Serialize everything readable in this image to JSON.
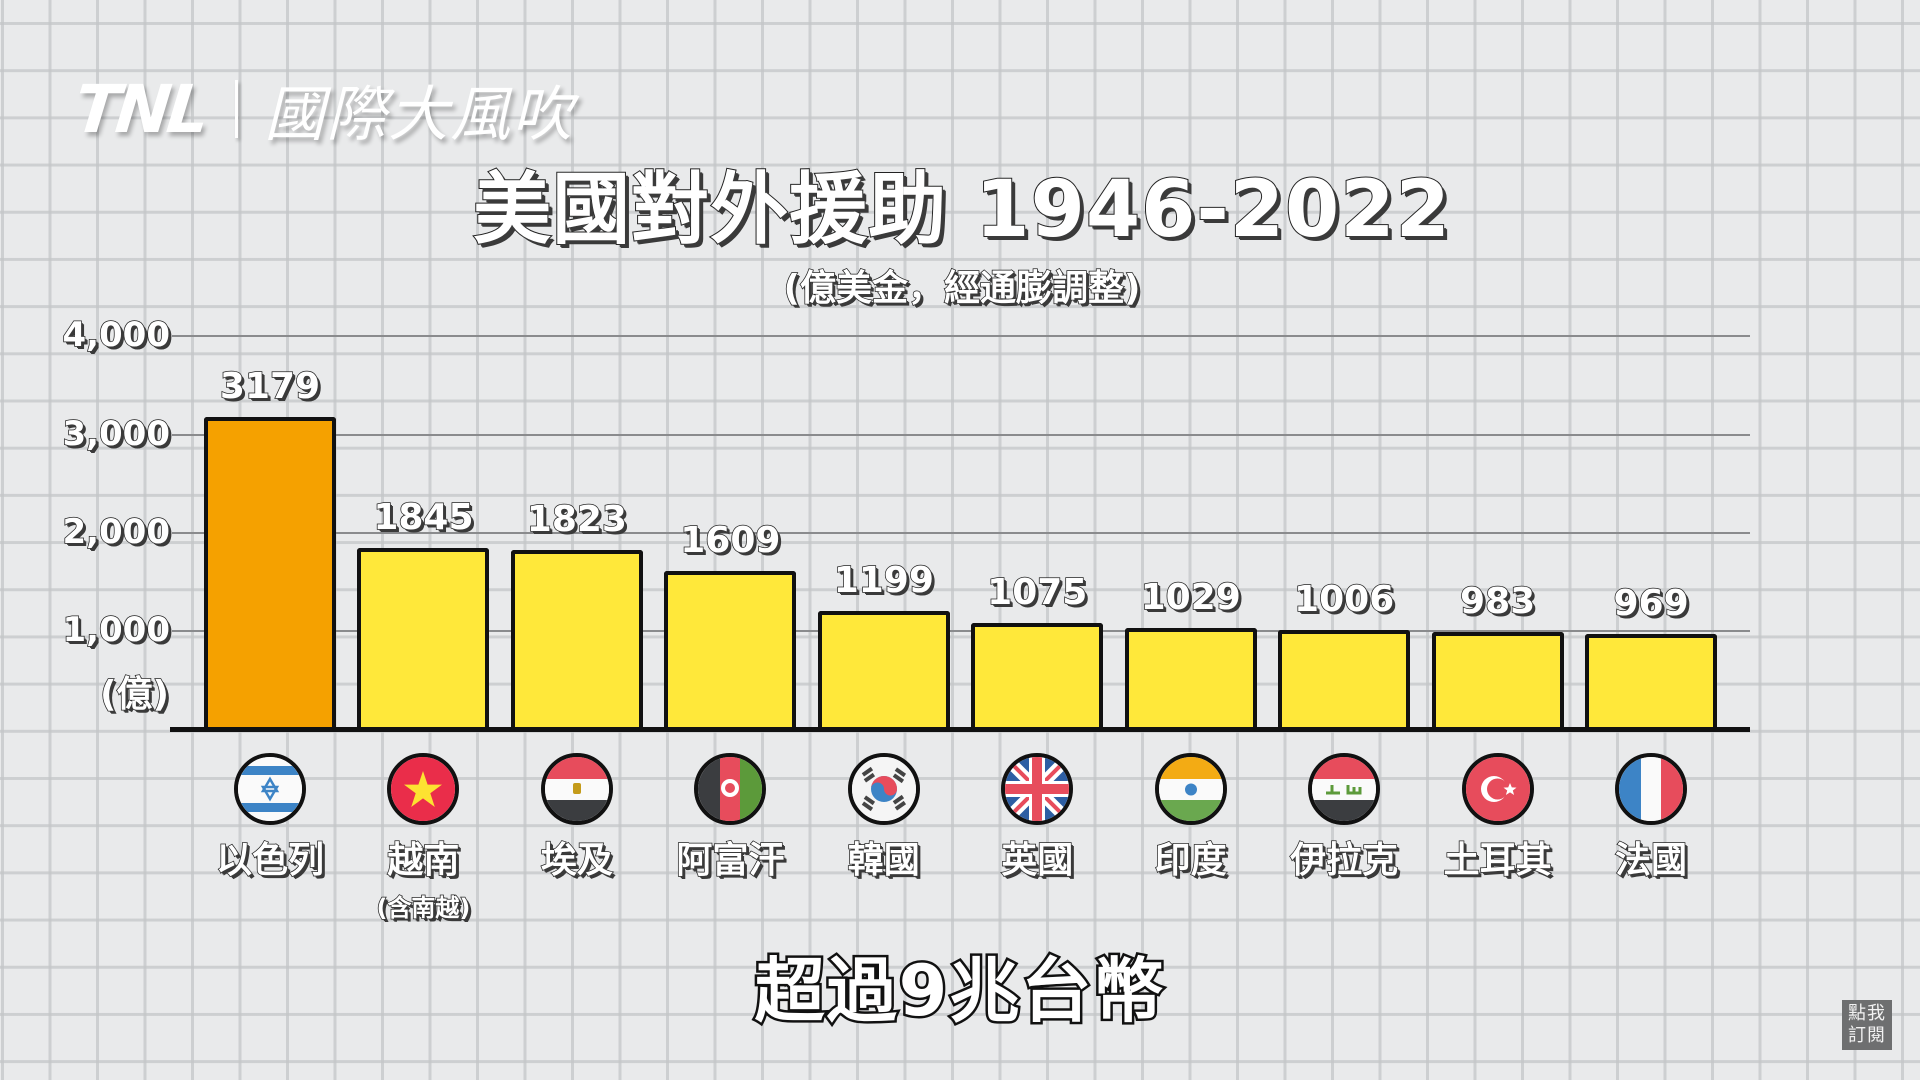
{
  "brand": {
    "logo": "TNL",
    "show_name": "國際大風吹"
  },
  "title": "美國對外援助 1946-2022",
  "subtitle": "(億美金，經通膨調整)",
  "y_axis": {
    "ticks": [
      "4,000",
      "3,000",
      "2,000",
      "1,000"
    ],
    "unit": "(億)"
  },
  "bars": [
    {
      "country": "以色列",
      "note": "",
      "value": "3179",
      "flag": "israel-flag",
      "highlight": true
    },
    {
      "country": "越南",
      "note": "(含南越)",
      "value": "1845",
      "flag": "vietnam-flag",
      "highlight": false
    },
    {
      "country": "埃及",
      "note": "",
      "value": "1823",
      "flag": "egypt-flag",
      "highlight": false
    },
    {
      "country": "阿富汗",
      "note": "",
      "value": "1609",
      "flag": "afghanistan-flag",
      "highlight": false
    },
    {
      "country": "韓國",
      "note": "",
      "value": "1199",
      "flag": "south-korea-flag",
      "highlight": false
    },
    {
      "country": "英國",
      "note": "",
      "value": "1075",
      "flag": "uk-flag",
      "highlight": false
    },
    {
      "country": "印度",
      "note": "",
      "value": "1029",
      "flag": "india-flag",
      "highlight": false
    },
    {
      "country": "伊拉克",
      "note": "",
      "value": "1006",
      "flag": "iraq-flag",
      "highlight": false
    },
    {
      "country": "土耳其",
      "note": "",
      "value": "983",
      "flag": "turkey-flag",
      "highlight": false
    },
    {
      "country": "法國",
      "note": "",
      "value": "969",
      "flag": "france-flag",
      "highlight": false
    }
  ],
  "colors": {
    "highlight_bar": "#f5a100",
    "bar": "#ffe83a",
    "background": "#e9eaeb",
    "gridline": "#8a8b8d"
  },
  "caption": "超過9兆台幣",
  "subscribe_badge": {
    "line1": "點我",
    "line2": "訂閱"
  },
  "chart_data": {
    "type": "bar",
    "title": "美國對外援助 1946-2022",
    "subtitle": "(億美金，經通膨調整)",
    "categories": [
      "以色列",
      "越南(含南越)",
      "埃及",
      "阿富汗",
      "韓國",
      "英國",
      "印度",
      "伊拉克",
      "土耳其",
      "法國"
    ],
    "values": [
      3179,
      1845,
      1823,
      1609,
      1199,
      1075,
      1029,
      1006,
      983,
      969
    ],
    "xlabel": "",
    "ylabel": "(億)",
    "ylim": [
      0,
      4000
    ],
    "yticks": [
      1000,
      2000,
      3000,
      4000
    ],
    "grid": "horizontal",
    "legend": "none",
    "data_labels": true,
    "highlighted_category": "以色列"
  }
}
